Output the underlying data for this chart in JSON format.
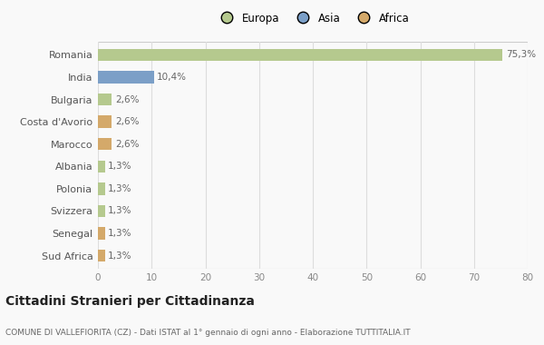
{
  "countries": [
    "Romania",
    "India",
    "Bulgaria",
    "Costa d'Avorio",
    "Marocco",
    "Albania",
    "Polonia",
    "Svizzera",
    "Senegal",
    "Sud Africa"
  ],
  "values": [
    75.3,
    10.4,
    2.6,
    2.6,
    2.6,
    1.3,
    1.3,
    1.3,
    1.3,
    1.3
  ],
  "labels": [
    "75,3%",
    "10,4%",
    "2,6%",
    "2,6%",
    "2,6%",
    "1,3%",
    "1,3%",
    "1,3%",
    "1,3%",
    "1,3%"
  ],
  "continents": [
    "Europa",
    "Asia",
    "Europa",
    "Africa",
    "Africa",
    "Europa",
    "Europa",
    "Europa",
    "Africa",
    "Africa"
  ],
  "colors": {
    "Europa": "#b5c98e",
    "Asia": "#7b9fc7",
    "Africa": "#d4a96a"
  },
  "title": "Cittadini Stranieri per Cittadinanza",
  "subtitle": "COMUNE DI VALLEFIORITA (CZ) - Dati ISTAT al 1° gennaio di ogni anno - Elaborazione TUTTITALIA.IT",
  "xlim": [
    0,
    80
  ],
  "xticks": [
    0,
    10,
    20,
    30,
    40,
    50,
    60,
    70,
    80
  ],
  "background_color": "#f9f9f9",
  "grid_color": "#dddddd",
  "bar_height": 0.55
}
